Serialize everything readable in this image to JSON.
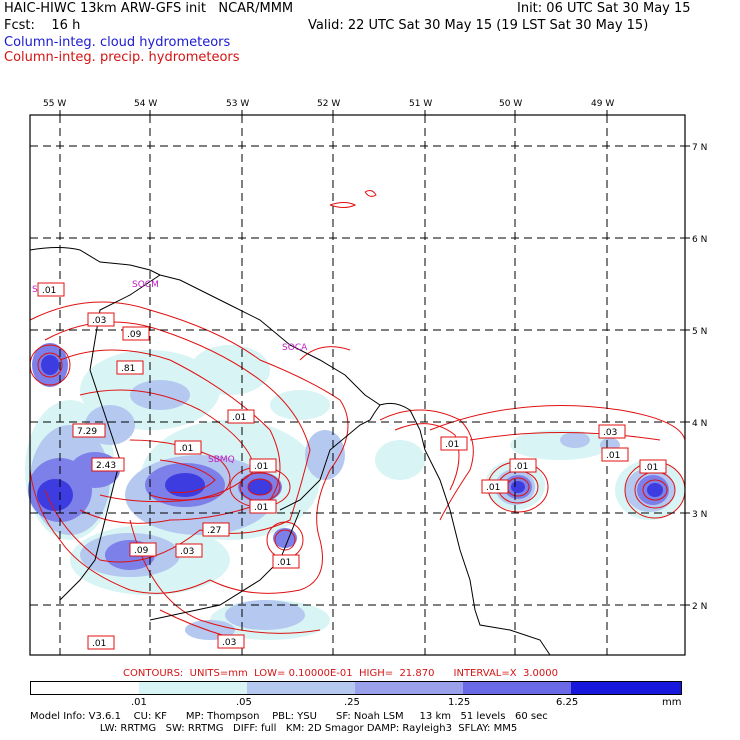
{
  "header": {
    "model_line": "HAIC-HIWC 13km ARW-GFS init   NCAR/MMM",
    "fcst_line": "Fcst:    16 h",
    "init_line": "Init: 06 UTC Sat 30 May 15",
    "valid_line": "Valid: 22 UTC Sat 30 May 15 (19 LST Sat 30 May 15)",
    "legend_cloud": "Column-integ. cloud hydrometeors",
    "legend_precip": "Column-integ. precip. hydrometeors"
  },
  "axes": {
    "lon_labels": [
      "55 W",
      "54 W",
      "53 W",
      "52 W",
      "51 W",
      "50 W",
      "49 W"
    ],
    "lat_labels": [
      "7 N",
      "6 N",
      "5 N",
      "4 N",
      "3 N",
      "2 N"
    ]
  },
  "place_labels": [
    "SOCA",
    "SOCM",
    "SMJP",
    "SBMQ"
  ],
  "contour_labels": [
    ".01",
    ".03",
    ".09",
    ".81",
    ".01",
    "7.29",
    ".01",
    "2.43",
    ".01",
    ".01",
    ".27",
    ".09",
    ".03",
    ".01",
    ".01",
    ".03",
    ".01",
    ".01",
    ".01",
    ".03",
    ".01",
    ".01"
  ],
  "contours_info": "CONTOURS:  UNITS=mm  LOW= 0.10000E-01  HIGH=  21.870      INTERVAL=X  3.0000",
  "colorbar": {
    "tick_labels": [
      ".01",
      ".05",
      ".25",
      "1.25",
      "6.25"
    ],
    "unit": "mm",
    "colors": [
      "#ffffff",
      "#d8f4f4",
      "#b4c8f0",
      "#9aa0ea",
      "#6a6ae6",
      "#4040e0",
      "#1818dc"
    ]
  },
  "footer": {
    "line1": "Model Info: V3.6.1    CU: KF      MP: Thompson    PBL: YSU      SF: Noah LSM     13 km   51 levels   60 sec",
    "line2": "                      LW: RRTMG   SW: RRTMG   DIFF: full   KM: 2D Smagor DAMP: Rayleigh3  SFLAY: MM5"
  },
  "colors": {
    "cloud_contour": "#1a1ad0",
    "precip_contour": "#e01010",
    "grid": "#000000",
    "coast": "#000000",
    "label_magenta": "#c020c0"
  }
}
